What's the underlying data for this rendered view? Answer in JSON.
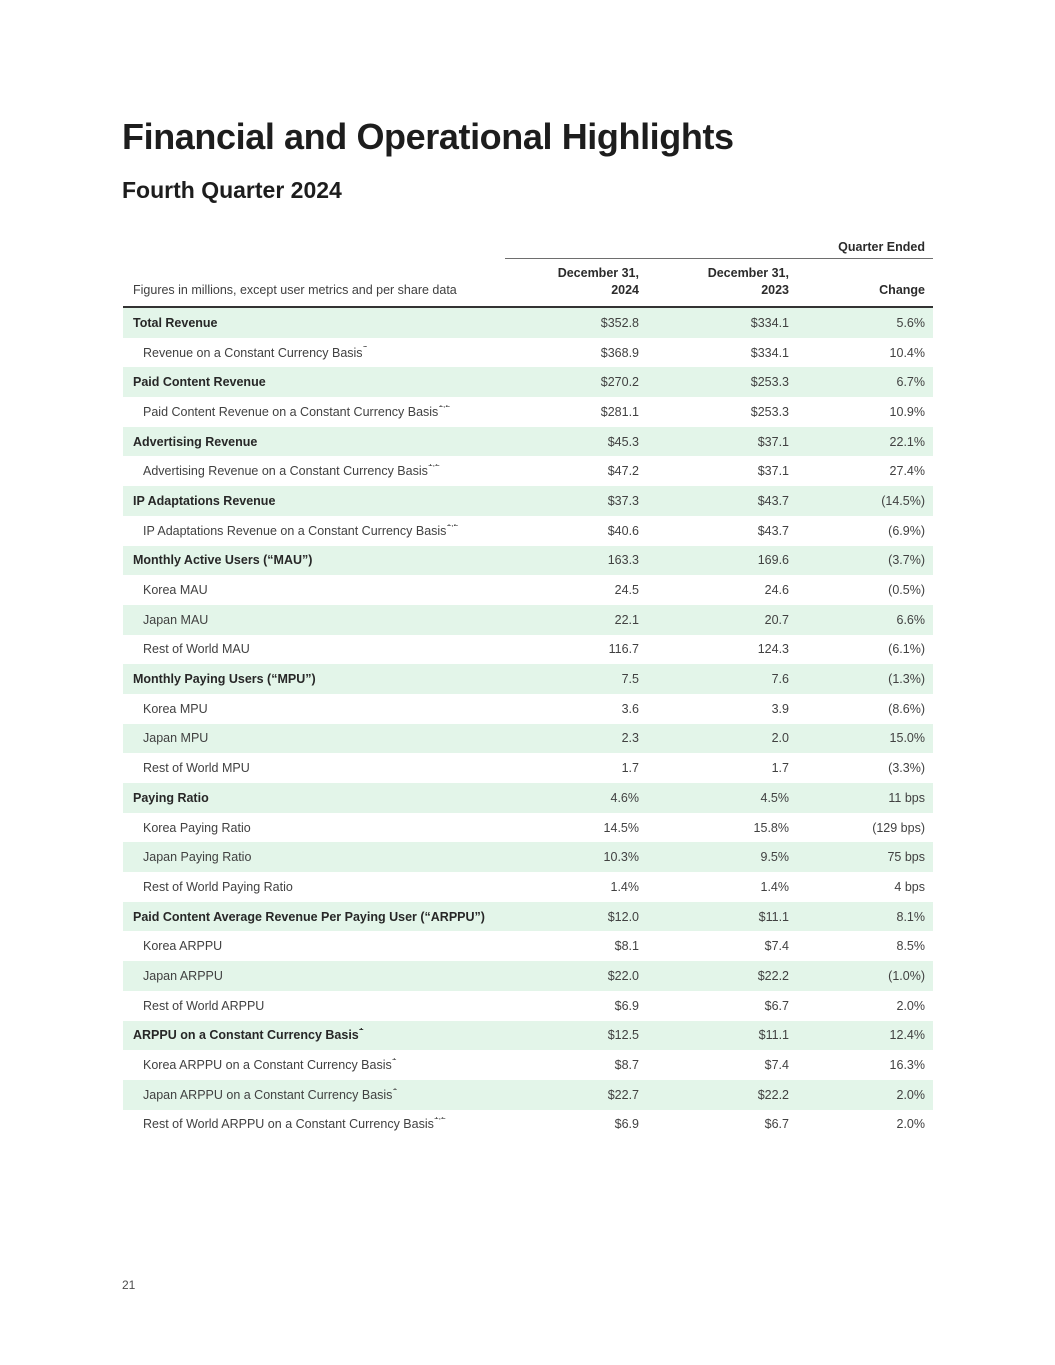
{
  "title": "Financial and Operational Highlights",
  "subtitle": "Fourth Quarter 2024",
  "page": {
    "number": "21"
  },
  "colors": {
    "row_shade_green": "#e3f5e9",
    "text_dark": "#272727",
    "text_body": "#414141",
    "rule_thin": "#6e6e6e",
    "rule_thick": "#333333"
  },
  "table": {
    "group_header": "Quarter Ended",
    "col_headers": {
      "description": "Figures in millions, except user metrics and per share data",
      "col1_line1": "December 31,",
      "col1_line2": "2024",
      "col2_line1": "December 31,",
      "col2_line2": "2023",
      "col3": "Change"
    },
    "rows": [
      {
        "label": "Total Revenue",
        "sup": "",
        "bold": true,
        "c2024": "$352.8",
        "c2023": "$334.1",
        "change": "5.6%"
      },
      {
        "label": "Revenue on a Constant Currency Basis",
        "sup": "1",
        "bold": false,
        "c2024": "$368.9",
        "c2023": "$334.1",
        "change": "10.4%"
      },
      {
        "label": "Paid Content Revenue",
        "sup": "",
        "bold": true,
        "c2024": "$270.2",
        "c2023": "$253.3",
        "change": "6.7%"
      },
      {
        "label": "Paid Content Revenue on a Constant Currency Basis",
        "sup": "1,2",
        "bold": false,
        "c2024": "$281.1",
        "c2023": "$253.3",
        "change": "10.9%"
      },
      {
        "label": "Advertising Revenue",
        "sup": "",
        "bold": true,
        "c2024": "$45.3",
        "c2023": "$37.1",
        "change": "22.1%"
      },
      {
        "label": "Advertising Revenue on a Constant Currency Basis",
        "sup": "1,2",
        "bold": false,
        "c2024": "$47.2",
        "c2023": "$37.1",
        "change": "27.4%"
      },
      {
        "label": "IP Adaptations Revenue",
        "sup": "",
        "bold": true,
        "c2024": "$37.3",
        "c2023": "$43.7",
        "change": "(14.5%)"
      },
      {
        "label": "IP Adaptations Revenue on a Constant Currency Basis",
        "sup": "1,2",
        "bold": false,
        "c2024": "$40.6",
        "c2023": "$43.7",
        "change": "(6.9%)"
      },
      {
        "label": "Monthly Active Users (“MAU”)",
        "sup": "",
        "bold": true,
        "c2024": "163.3",
        "c2023": "169.6",
        "change": "(3.7%)"
      },
      {
        "label": "Korea MAU",
        "sup": "",
        "bold": false,
        "c2024": "24.5",
        "c2023": "24.6",
        "change": "(0.5%)"
      },
      {
        "label": "Japan MAU",
        "sup": "",
        "bold": false,
        "c2024": "22.1",
        "c2023": "20.7",
        "change": "6.6%"
      },
      {
        "label": "Rest of World MAU",
        "sup": "",
        "bold": false,
        "c2024": "116.7",
        "c2023": "124.3",
        "change": "(6.1%)"
      },
      {
        "label": "Monthly Paying Users (“MPU”)",
        "sup": "",
        "bold": true,
        "c2024": "7.5",
        "c2023": "7.6",
        "change": "(1.3%)"
      },
      {
        "label": "Korea MPU",
        "sup": "",
        "bold": false,
        "c2024": "3.6",
        "c2023": "3.9",
        "change": "(8.6%)"
      },
      {
        "label": "Japan MPU",
        "sup": "",
        "bold": false,
        "c2024": "2.3",
        "c2023": "2.0",
        "change": "15.0%"
      },
      {
        "label": "Rest of World MPU",
        "sup": "",
        "bold": false,
        "c2024": "1.7",
        "c2023": "1.7",
        "change": "(3.3%)"
      },
      {
        "label": "Paying Ratio",
        "sup": "",
        "bold": true,
        "c2024": "4.6%",
        "c2023": "4.5%",
        "change": "11 bps"
      },
      {
        "label": "Korea Paying Ratio",
        "sup": "",
        "bold": false,
        "c2024": "14.5%",
        "c2023": "15.8%",
        "change": "(129 bps)"
      },
      {
        "label": "Japan Paying Ratio",
        "sup": "",
        "bold": false,
        "c2024": "10.3%",
        "c2023": "9.5%",
        "change": "75 bps"
      },
      {
        "label": "Rest of World Paying Ratio",
        "sup": "",
        "bold": false,
        "c2024": "1.4%",
        "c2023": "1.4%",
        "change": "4 bps"
      },
      {
        "label": "Paid Content Average Revenue Per Paying User (“ARPPU”)",
        "sup": "",
        "bold": true,
        "c2024": "$12.0",
        "c2023": "$11.1",
        "change": "8.1%"
      },
      {
        "label": "Korea ARPPU",
        "sup": "",
        "bold": false,
        "c2024": "$8.1",
        "c2023": "$7.4",
        "change": "8.5%"
      },
      {
        "label": "Japan ARPPU",
        "sup": "",
        "bold": false,
        "c2024": "$22.0",
        "c2023": "$22.2",
        "change": "(1.0%)"
      },
      {
        "label": "Rest of World ARPPU",
        "sup": "",
        "bold": false,
        "c2024": "$6.9",
        "c2023": "$6.7",
        "change": "2.0%"
      },
      {
        "label": "ARPPU on a Constant Currency Basis",
        "sup": "1",
        "bold": true,
        "c2024": "$12.5",
        "c2023": "$11.1",
        "change": "12.4%"
      },
      {
        "label": "Korea ARPPU on a Constant Currency Basis",
        "sup": "1",
        "bold": false,
        "c2024": "$8.7",
        "c2023": "$7.4",
        "change": "16.3%"
      },
      {
        "label": "Japan ARPPU on a Constant Currency Basis",
        "sup": "1",
        "bold": false,
        "c2024": "$22.7",
        "c2023": "$22.2",
        "change": "2.0%"
      },
      {
        "label": "Rest of World ARPPU on a Constant Currency Basis",
        "sup": "1,2",
        "bold": false,
        "c2024": "$6.9",
        "c2023": "$6.7",
        "change": "2.0%"
      }
    ]
  }
}
